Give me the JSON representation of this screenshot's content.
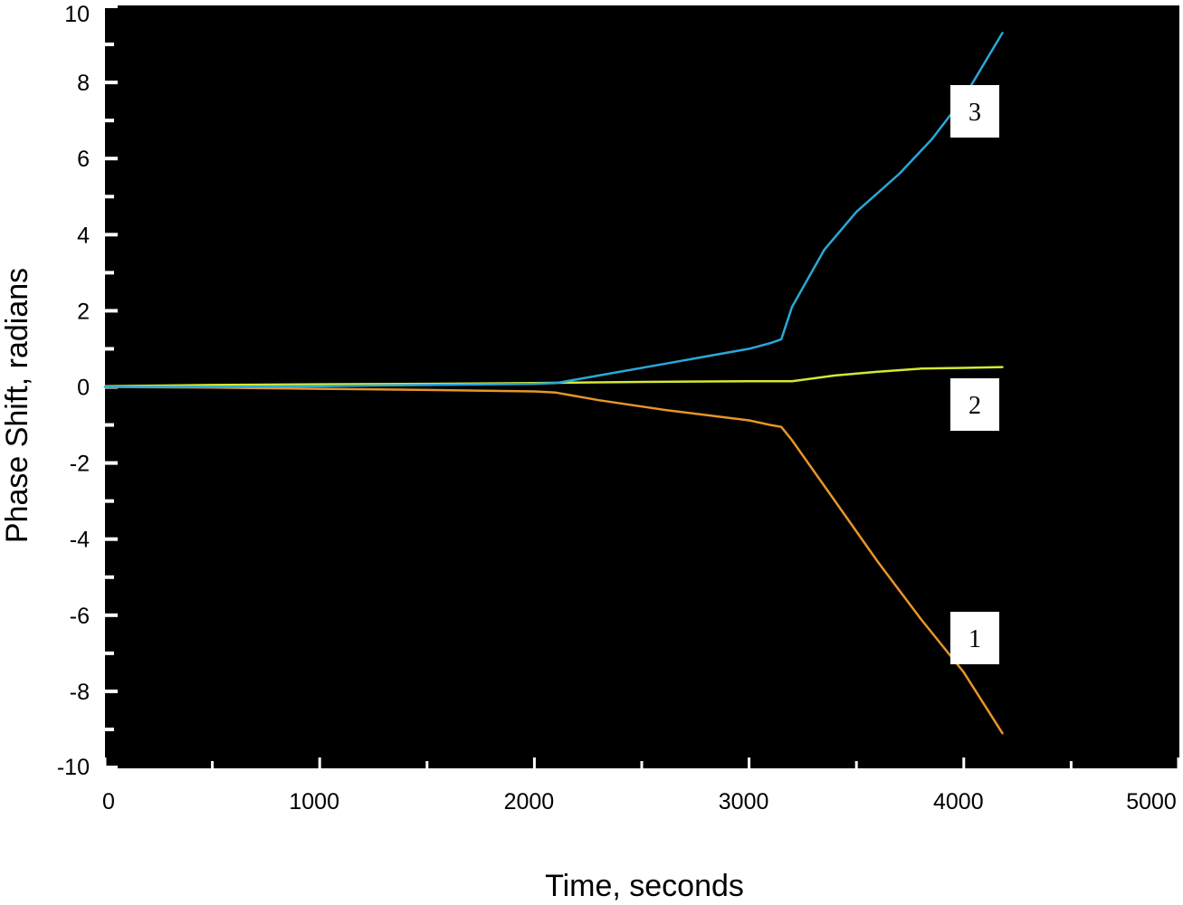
{
  "chart_data": {
    "type": "line",
    "title": "",
    "xlabel": "Time, seconds",
    "ylabel": "Phase Shift, radians",
    "xlim": [
      0,
      5000
    ],
    "ylim": [
      -10,
      10
    ],
    "x_ticks": [
      "0",
      "1000",
      "2000",
      "3000",
      "4000",
      "5000"
    ],
    "y_ticks": [
      "10",
      "8",
      "6",
      "4",
      "2",
      "0",
      "-2",
      "-4",
      "-6",
      "-8",
      "-10"
    ],
    "x_tick_values": [
      0,
      1000,
      2000,
      3000,
      4000,
      5000
    ],
    "y_tick_values": [
      10,
      8,
      6,
      4,
      2,
      0,
      -2,
      -4,
      -6,
      -8,
      -10
    ],
    "x_minor_step": 500,
    "y_minor_step": 1,
    "plot_background": "#000000",
    "grid": false,
    "legend": "none",
    "series": [
      {
        "label": "1",
        "color": "#e8952a",
        "x": [
          0,
          500,
          1000,
          1500,
          2000,
          2100,
          2300,
          2600,
          3000,
          3100,
          3150,
          3200,
          3400,
          3600,
          3800,
          4000,
          4180
        ],
        "y": [
          0.0,
          -0.02,
          -0.05,
          -0.08,
          -0.12,
          -0.15,
          -0.35,
          -0.6,
          -0.88,
          -1.0,
          -1.05,
          -1.4,
          -3.0,
          -4.6,
          -6.1,
          -7.5,
          -9.1
        ]
      },
      {
        "label": "2",
        "color": "#d4e832",
        "x": [
          0,
          500,
          1000,
          1500,
          2000,
          2500,
          3000,
          3200,
          3400,
          3600,
          3800,
          4000,
          4180
        ],
        "y": [
          0.02,
          0.05,
          0.07,
          0.08,
          0.1,
          0.13,
          0.15,
          0.15,
          0.3,
          0.4,
          0.48,
          0.5,
          0.52
        ]
      },
      {
        "label": "3",
        "color": "#2aa8d8",
        "x": [
          0,
          500,
          1000,
          1500,
          2000,
          2100,
          2300,
          2600,
          3000,
          3100,
          3150,
          3200,
          3350,
          3500,
          3700,
          3850,
          4000,
          4180
        ],
        "y": [
          0.0,
          0.0,
          0.02,
          0.05,
          0.08,
          0.1,
          0.3,
          0.6,
          1.0,
          1.15,
          1.25,
          2.1,
          3.6,
          4.6,
          5.6,
          6.5,
          7.6,
          9.3
        ]
      }
    ],
    "series_tags": [
      {
        "text": "3",
        "series": 2
      },
      {
        "text": "2",
        "series": 1
      },
      {
        "text": "1",
        "series": 0
      }
    ]
  }
}
